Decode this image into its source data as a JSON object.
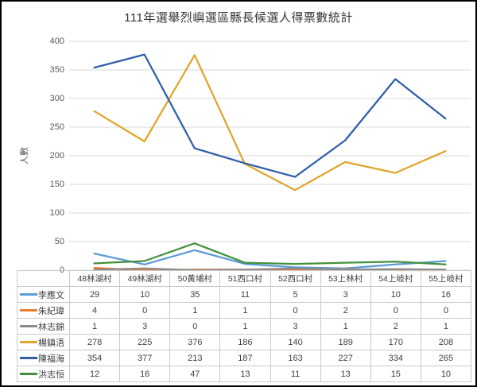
{
  "title": "111年選舉烈嶼選區縣長候選人得票數統計",
  "y_axis_title": "人數",
  "chart_data": {
    "type": "line",
    "title": "111年選舉烈嶼選區縣長候選人得票數統計",
    "xlabel": "",
    "ylabel": "人數",
    "ylim": [
      0,
      400
    ],
    "yticks": [
      0,
      50,
      100,
      150,
      200,
      250,
      300,
      350,
      400
    ],
    "grid": "horizontal",
    "legend_position": "data-table-left",
    "gridline_color": "#d9d9d9",
    "categories": [
      "48林湖村",
      "49林湖村",
      "50黃埔村",
      "51西口村",
      "52西口村",
      "53上林村",
      "54上岐村",
      "55上岐村"
    ],
    "series": [
      {
        "name": "李應文",
        "color": "#5B9BD5",
        "values": [
          29,
          10,
          35,
          11,
          5,
          3,
          10,
          16
        ]
      },
      {
        "name": "朱紀瑋",
        "color": "#ED7D31",
        "values": [
          4,
          0,
          1,
          1,
          0,
          2,
          0,
          0
        ]
      },
      {
        "name": "林志錦",
        "color": "#8C8C8C",
        "values": [
          1,
          3,
          0,
          1,
          3,
          1,
          2,
          1
        ]
      },
      {
        "name": "楊鎮浯",
        "color": "#DFA62B",
        "values": [
          278,
          225,
          376,
          186,
          140,
          189,
          170,
          208
        ]
      },
      {
        "name": "陳福海",
        "color": "#2E5EA8",
        "values": [
          354,
          377,
          213,
          187,
          163,
          227,
          334,
          265
        ]
      },
      {
        "name": "洪志恒",
        "color": "#43913C",
        "values": [
          12,
          16,
          47,
          13,
          11,
          13,
          15,
          10
        ]
      }
    ]
  }
}
